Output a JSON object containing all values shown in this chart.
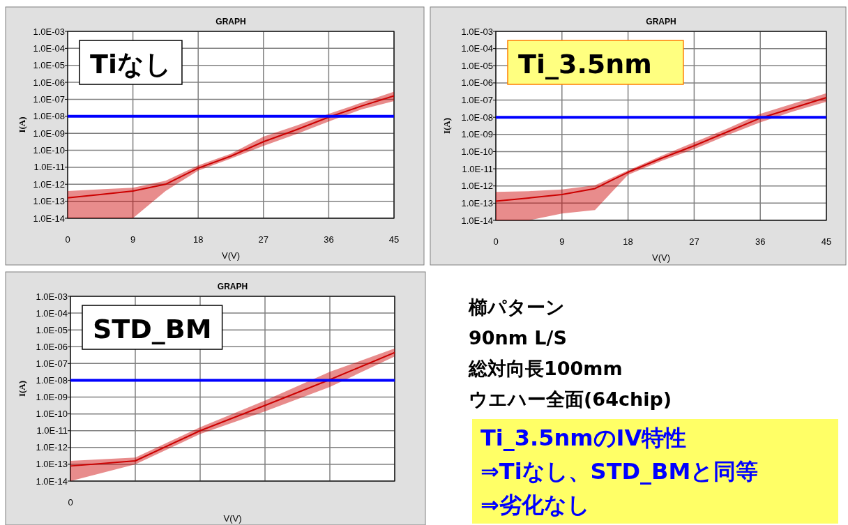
{
  "chart_data": [
    {
      "type": "line",
      "title": "GRAPH",
      "xlabel": "V(V)",
      "ylabel": "I(A)",
      "annotations": [
        "Tiなし"
      ],
      "log": "y",
      "grid": true,
      "xlim": [
        0,
        45
      ],
      "xticks": [
        0,
        9,
        18,
        27,
        36,
        45
      ],
      "ylim": [
        1e-14,
        0.001
      ],
      "yticks": [
        {
          "value": 1e-14,
          "label": "1.0E-14"
        },
        {
          "value": 1e-13,
          "label": "1.0E-13"
        },
        {
          "value": 1e-12,
          "label": "1.0E-12"
        },
        {
          "value": 1e-11,
          "label": "1.0E-11"
        },
        {
          "value": 1e-10,
          "label": "1.0E-10"
        },
        {
          "value": 1e-09,
          "label": "1.0E-09"
        },
        {
          "value": 1e-08,
          "label": "1.0E-08"
        },
        {
          "value": 1e-07,
          "label": "1.0E-07"
        },
        {
          "value": 1e-06,
          "label": "1.0E-06"
        },
        {
          "value": 1e-05,
          "label": "1.0E-05"
        },
        {
          "value": 0.0001,
          "label": "1.0E-04"
        },
        {
          "value": 0.001,
          "label": "1.0E-03"
        }
      ],
      "x": [
        0,
        4.5,
        9,
        13.5,
        18,
        22.5,
        27,
        31.5,
        36,
        40.5,
        45
      ],
      "series": [
        {
          "color": "#cc0000",
          "values": [
            1.6e-13,
            2.5e-13,
            4e-13,
            1e-12,
            8.9e-12,
            4.5e-11,
            3.2e-10,
            1.6e-09,
            8.9e-09,
            4e-08,
            1.6e-07
          ],
          "lower": [
            1e-14,
            1e-14,
            1e-14,
            4e-13,
            6.3e-12,
            3.2e-11,
            1.8e-10,
            8.9e-10,
            5e-09,
            2.5e-08,
            7.9e-08
          ],
          "upper": [
            4e-13,
            5e-13,
            6.3e-13,
            1.6e-12,
            1.3e-11,
            6.3e-11,
            6.3e-10,
            2.8e-09,
            1.4e-08,
            6.3e-08,
            2.8e-07
          ]
        }
      ],
      "ref_lines": [
        {
          "axis": "y",
          "value": 1e-08,
          "color": "#0000ff"
        }
      ]
    },
    {
      "type": "line",
      "title": "GRAPH",
      "xlabel": "V(V)",
      "ylabel": "I(A)",
      "annotations": [
        "Ti_3.5nm"
      ],
      "log": "y",
      "grid": true,
      "xlim": [
        0,
        45
      ],
      "xticks": [
        0,
        9,
        18,
        27,
        36,
        45
      ],
      "ylim": [
        1e-14,
        0.001
      ],
      "yticks": [
        {
          "value": 1e-14,
          "label": "1.0E-14"
        },
        {
          "value": 1e-13,
          "label": "1.0E-13"
        },
        {
          "value": 1e-12,
          "label": "1.0E-12"
        },
        {
          "value": 1e-11,
          "label": "1.0E-11"
        },
        {
          "value": 1e-10,
          "label": "1.0E-10"
        },
        {
          "value": 1e-09,
          "label": "1.0E-09"
        },
        {
          "value": 1e-08,
          "label": "1.0E-08"
        },
        {
          "value": 1e-07,
          "label": "1.0E-07"
        },
        {
          "value": 1e-06,
          "label": "1.0E-06"
        },
        {
          "value": 1e-05,
          "label": "1.0E-05"
        },
        {
          "value": 0.0001,
          "label": "1.0E-04"
        },
        {
          "value": 0.001,
          "label": "1.0E-03"
        }
      ],
      "x": [
        0,
        4.5,
        9,
        13.5,
        18,
        22.5,
        27,
        31.5,
        36,
        40.5,
        45
      ],
      "series": [
        {
          "color": "#cc0000",
          "values": [
            1.3e-13,
            2e-13,
            3.2e-13,
            7.1e-13,
            6.3e-12,
            4e-11,
            2.2e-10,
            1.4e-09,
            8.9e-09,
            3.5e-08,
            1.4e-07
          ],
          "lower": [
            1e-14,
            1e-14,
            2.5e-14,
            4e-14,
            4.5e-12,
            2.8e-11,
            1.4e-10,
            8.9e-10,
            5e-09,
            2.2e-08,
            7.9e-08
          ],
          "upper": [
            4.5e-13,
            5e-13,
            6.3e-13,
            1.1e-12,
            7.9e-12,
            5.6e-11,
            3.5e-10,
            2.2e-09,
            1.6e-08,
            6.3e-08,
            2.5e-07
          ]
        }
      ],
      "ref_lines": [
        {
          "axis": "y",
          "value": 1e-08,
          "color": "#0000ff"
        }
      ]
    },
    {
      "type": "line",
      "title": "GRAPH",
      "xlabel": "V(V)",
      "ylabel": "I(A)",
      "annotations": [
        "STD_BM"
      ],
      "log": "y",
      "grid": true,
      "categories": [
        "0",
        null,
        null,
        null,
        null,
        null
      ],
      "ylim": [
        1e-14,
        0.001
      ],
      "yticks": [
        {
          "value": 1e-14,
          "label": "1.0E-14"
        },
        {
          "value": 1e-13,
          "label": "1.0E-13"
        },
        {
          "value": 1e-12,
          "label": "1.0E-12"
        },
        {
          "value": 1e-11,
          "label": "1.0E-11"
        },
        {
          "value": 1e-10,
          "label": "1.0E-10"
        },
        {
          "value": 1e-09,
          "label": "1.0E-09"
        },
        {
          "value": 1e-08,
          "label": "1.0E-08"
        },
        {
          "value": 1e-07,
          "label": "1.0E-07"
        },
        {
          "value": 1e-06,
          "label": "1.0E-06"
        },
        {
          "value": 1e-05,
          "label": "1.0E-05"
        },
        {
          "value": 0.0001,
          "label": "1.0E-04"
        },
        {
          "value": 0.001,
          "label": "1.0E-03"
        }
      ],
      "series": [
        {
          "color": "#cc0000",
          "values": [
            7.9e-14,
            1.6e-13,
            1e-11,
            3.2e-10,
            1.1e-08,
            4.5e-07
          ],
          "lower": [
            1e-14,
            1e-13,
            6.3e-12,
            1.4e-10,
            4e-09,
            2.6e-07
          ],
          "upper": [
            1.6e-13,
            2.5e-13,
            1.6e-11,
            6.3e-10,
            3.2e-08,
            7.9e-07
          ]
        }
      ],
      "ref_lines": [
        {
          "axis": "y",
          "value": 1e-08,
          "color": "#0000ff"
        }
      ]
    },
    {
      "type": "other",
      "annotations": [
        "櫛パターン",
        "90nm L/S",
        "総対向長100mm",
        "ウエハー全面(64chip)"
      ]
    },
    {
      "type": "other",
      "annotations": [
        "Ti_3.5nmのIV特性",
        "⇒Tiなし、STD_BMと同等",
        "⇒劣化なし"
      ]
    }
  ]
}
